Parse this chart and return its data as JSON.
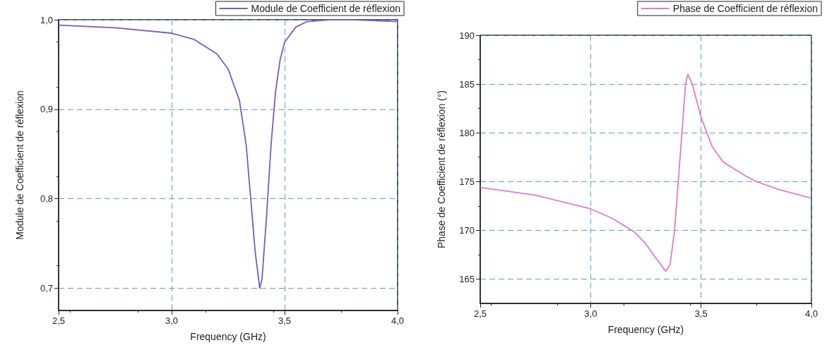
{
  "chart_data": [
    {
      "type": "line",
      "xlabel": "Frequency (GHz)",
      "ylabel": "Module de Coefficient de réflexion",
      "xlim": [
        2.5,
        4.0
      ],
      "ylim": [
        0.675,
        1.0
      ],
      "xticks": [
        {
          "value": 2.5,
          "label": "2,5"
        },
        {
          "value": 3.0,
          "label": "3,0"
        },
        {
          "value": 3.5,
          "label": "3,5"
        },
        {
          "value": 4.0,
          "label": "4,0"
        }
      ],
      "yticks": [
        {
          "value": 0.7,
          "label": "0,7"
        },
        {
          "value": 0.8,
          "label": "0,8"
        },
        {
          "value": 0.9,
          "label": "0,9"
        },
        {
          "value": 1.0,
          "label": "1,0"
        }
      ],
      "grid": true,
      "legend": "top right",
      "marker": "none",
      "series": [
        {
          "name": "Module de Coefficient de réflexion",
          "color": "#7b5cc0",
          "x": [
            2.5,
            2.75,
            3.0,
            3.1,
            3.2,
            3.25,
            3.3,
            3.33,
            3.35,
            3.37,
            3.39,
            3.4,
            3.42,
            3.44,
            3.46,
            3.48,
            3.5,
            3.55,
            3.6,
            3.7,
            3.8,
            4.0
          ],
          "values": [
            0.994,
            0.991,
            0.985,
            0.978,
            0.962,
            0.945,
            0.91,
            0.86,
            0.8,
            0.74,
            0.7,
            0.71,
            0.78,
            0.86,
            0.92,
            0.955,
            0.975,
            0.992,
            0.998,
            1.0,
            1.0,
            0.998
          ]
        }
      ]
    },
    {
      "type": "line",
      "xlabel": "Frequency (GHz)",
      "ylabel": "Phase de Coefficient de réflexion (°)",
      "xlim": [
        2.5,
        4.0
      ],
      "ylim": [
        162.5,
        190
      ],
      "xticks": [
        {
          "value": 2.5,
          "label": "2,5"
        },
        {
          "value": 3.0,
          "label": "3,0"
        },
        {
          "value": 3.5,
          "label": "3,5"
        },
        {
          "value": 4.0,
          "label": "4,0"
        }
      ],
      "yticks": [
        165,
        170,
        175,
        180,
        185,
        190
      ],
      "grid": true,
      "legend": "top right",
      "marker": "none",
      "series": [
        {
          "name": "Phase de Coefficient de réflexion",
          "color": "#e07cc8",
          "x": [
            2.5,
            2.75,
            3.0,
            3.1,
            3.2,
            3.25,
            3.3,
            3.34,
            3.36,
            3.38,
            3.4,
            3.42,
            3.43,
            3.44,
            3.46,
            3.5,
            3.55,
            3.6,
            3.7,
            3.75,
            3.85,
            4.0
          ],
          "values": [
            174.4,
            173.6,
            172.2,
            171.2,
            169.8,
            168.6,
            167.0,
            165.8,
            166.5,
            170,
            176,
            182,
            185,
            186,
            185,
            181.6,
            178.6,
            177,
            175.6,
            175,
            174.2,
            173.3
          ]
        }
      ]
    }
  ]
}
